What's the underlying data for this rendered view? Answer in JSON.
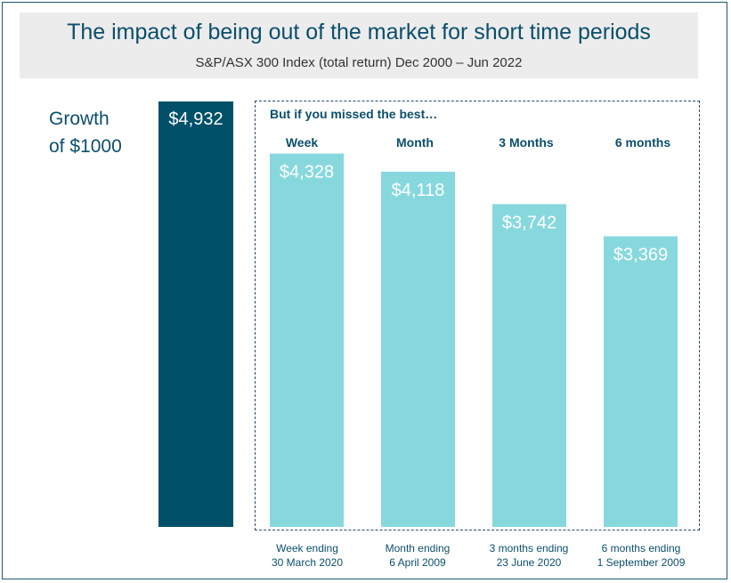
{
  "header": {
    "title": "The impact of being out of the market for short time periods",
    "subtitle": "S&P/ASX 300 Index (total return) Dec 2000 – Jun 2022"
  },
  "growth_label_line1": "Growth",
  "growth_label_line2": "of $1000",
  "missed_title": "But if you missed the best…",
  "colors": {
    "total": "#005068",
    "missed": "#87d8dd",
    "title": "#0b4f6c"
  },
  "chart_data": {
    "type": "bar",
    "title": "The impact of being out of the market for short time periods",
    "subtitle": "S&P/ASX 300 Index (total return) Dec 2000 – Jun 2022",
    "ylim": [
      0,
      5000
    ],
    "grid": false,
    "total": {
      "value": 4932,
      "label": "$4,932"
    },
    "categories": [
      "Week",
      "Month",
      "3 Months",
      "6 months"
    ],
    "values": [
      4328,
      4118,
      3742,
      3369
    ],
    "value_labels": [
      "$4,328",
      "$4,118",
      "$3,742",
      "$3,369"
    ],
    "period_labels": [
      [
        "Week ending",
        "30 March 2020"
      ],
      [
        "Month ending",
        "6 April 2009"
      ],
      [
        "3 months  ending",
        "23 June 2020"
      ],
      [
        "6 months ending",
        "1 September 2009"
      ]
    ]
  }
}
